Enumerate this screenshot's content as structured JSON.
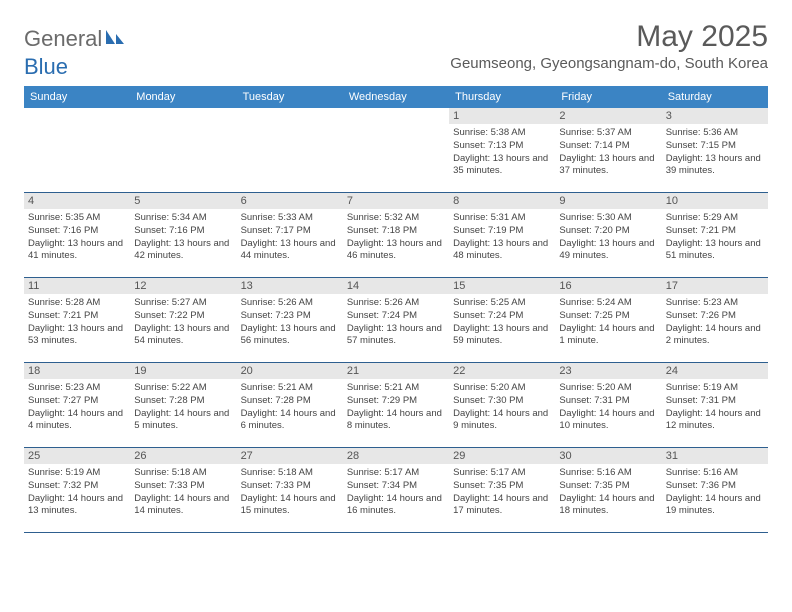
{
  "logo": {
    "text1": "General",
    "text2": "Blue"
  },
  "title": "May 2025",
  "location": "Geumseong, Gyeongsangnam-do, South Korea",
  "colors": {
    "header_bg": "#3b84c4",
    "row_divider": "#2e5f8f",
    "daynum_bg": "#e7e7e7",
    "logo_gray": "#6b6b6b",
    "logo_blue": "#2a6db0"
  },
  "day_names": [
    "Sunday",
    "Monday",
    "Tuesday",
    "Wednesday",
    "Thursday",
    "Friday",
    "Saturday"
  ],
  "weeks": [
    [
      {
        "blank": true
      },
      {
        "blank": true
      },
      {
        "blank": true
      },
      {
        "blank": true
      },
      {
        "n": "1",
        "sr": "5:38 AM",
        "ss": "7:13 PM",
        "dl": "13 hours and 35 minutes."
      },
      {
        "n": "2",
        "sr": "5:37 AM",
        "ss": "7:14 PM",
        "dl": "13 hours and 37 minutes."
      },
      {
        "n": "3",
        "sr": "5:36 AM",
        "ss": "7:15 PM",
        "dl": "13 hours and 39 minutes."
      }
    ],
    [
      {
        "n": "4",
        "sr": "5:35 AM",
        "ss": "7:16 PM",
        "dl": "13 hours and 41 minutes."
      },
      {
        "n": "5",
        "sr": "5:34 AM",
        "ss": "7:16 PM",
        "dl": "13 hours and 42 minutes."
      },
      {
        "n": "6",
        "sr": "5:33 AM",
        "ss": "7:17 PM",
        "dl": "13 hours and 44 minutes."
      },
      {
        "n": "7",
        "sr": "5:32 AM",
        "ss": "7:18 PM",
        "dl": "13 hours and 46 minutes."
      },
      {
        "n": "8",
        "sr": "5:31 AM",
        "ss": "7:19 PM",
        "dl": "13 hours and 48 minutes."
      },
      {
        "n": "9",
        "sr": "5:30 AM",
        "ss": "7:20 PM",
        "dl": "13 hours and 49 minutes."
      },
      {
        "n": "10",
        "sr": "5:29 AM",
        "ss": "7:21 PM",
        "dl": "13 hours and 51 minutes."
      }
    ],
    [
      {
        "n": "11",
        "sr": "5:28 AM",
        "ss": "7:21 PM",
        "dl": "13 hours and 53 minutes."
      },
      {
        "n": "12",
        "sr": "5:27 AM",
        "ss": "7:22 PM",
        "dl": "13 hours and 54 minutes."
      },
      {
        "n": "13",
        "sr": "5:26 AM",
        "ss": "7:23 PM",
        "dl": "13 hours and 56 minutes."
      },
      {
        "n": "14",
        "sr": "5:26 AM",
        "ss": "7:24 PM",
        "dl": "13 hours and 57 minutes."
      },
      {
        "n": "15",
        "sr": "5:25 AM",
        "ss": "7:24 PM",
        "dl": "13 hours and 59 minutes."
      },
      {
        "n": "16",
        "sr": "5:24 AM",
        "ss": "7:25 PM",
        "dl": "14 hours and 1 minute."
      },
      {
        "n": "17",
        "sr": "5:23 AM",
        "ss": "7:26 PM",
        "dl": "14 hours and 2 minutes."
      }
    ],
    [
      {
        "n": "18",
        "sr": "5:23 AM",
        "ss": "7:27 PM",
        "dl": "14 hours and 4 minutes."
      },
      {
        "n": "19",
        "sr": "5:22 AM",
        "ss": "7:28 PM",
        "dl": "14 hours and 5 minutes."
      },
      {
        "n": "20",
        "sr": "5:21 AM",
        "ss": "7:28 PM",
        "dl": "14 hours and 6 minutes."
      },
      {
        "n": "21",
        "sr": "5:21 AM",
        "ss": "7:29 PM",
        "dl": "14 hours and 8 minutes."
      },
      {
        "n": "22",
        "sr": "5:20 AM",
        "ss": "7:30 PM",
        "dl": "14 hours and 9 minutes."
      },
      {
        "n": "23",
        "sr": "5:20 AM",
        "ss": "7:31 PM",
        "dl": "14 hours and 10 minutes."
      },
      {
        "n": "24",
        "sr": "5:19 AM",
        "ss": "7:31 PM",
        "dl": "14 hours and 12 minutes."
      }
    ],
    [
      {
        "n": "25",
        "sr": "5:19 AM",
        "ss": "7:32 PM",
        "dl": "14 hours and 13 minutes."
      },
      {
        "n": "26",
        "sr": "5:18 AM",
        "ss": "7:33 PM",
        "dl": "14 hours and 14 minutes."
      },
      {
        "n": "27",
        "sr": "5:18 AM",
        "ss": "7:33 PM",
        "dl": "14 hours and 15 minutes."
      },
      {
        "n": "28",
        "sr": "5:17 AM",
        "ss": "7:34 PM",
        "dl": "14 hours and 16 minutes."
      },
      {
        "n": "29",
        "sr": "5:17 AM",
        "ss": "7:35 PM",
        "dl": "14 hours and 17 minutes."
      },
      {
        "n": "30",
        "sr": "5:16 AM",
        "ss": "7:35 PM",
        "dl": "14 hours and 18 minutes."
      },
      {
        "n": "31",
        "sr": "5:16 AM",
        "ss": "7:36 PM",
        "dl": "14 hours and 19 minutes."
      }
    ]
  ],
  "labels": {
    "sunrise": "Sunrise: ",
    "sunset": "Sunset: ",
    "daylight": "Daylight: "
  }
}
